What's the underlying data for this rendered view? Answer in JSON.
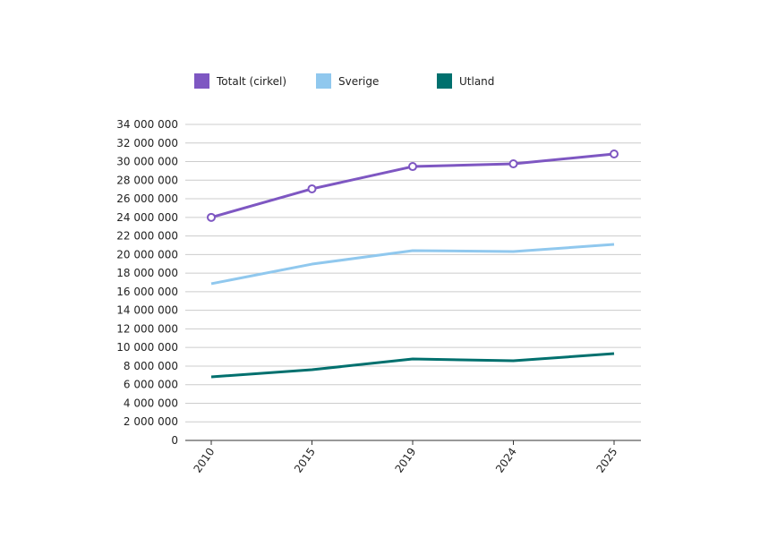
{
  "chart_data": {
    "type": "line",
    "categories": [
      "2010",
      "2015",
      "2019",
      "2024",
      "2025"
    ],
    "series": [
      {
        "name": "Totalt (cirkel)",
        "color": "#7e57c2",
        "markers": "circle",
        "values": [
          24000000,
          27070000,
          29470000,
          29760000,
          30820000
        ]
      },
      {
        "name": "Sverige",
        "color": "#90c8ee",
        "values": [
          16860000,
          18970000,
          20420000,
          20320000,
          21090000
        ]
      },
      {
        "name": "Utland",
        "color": "#00706e",
        "values": [
          6840000,
          7610000,
          8760000,
          8570000,
          9340000
        ]
      }
    ],
    "ylim": [
      0,
      34000000
    ],
    "yticks": [
      0,
      2000000,
      4000000,
      6000000,
      8000000,
      10000000,
      12000000,
      14000000,
      16000000,
      18000000,
      20000000,
      22000000,
      24000000,
      26000000,
      28000000,
      30000000,
      32000000,
      34000000
    ],
    "grid": true,
    "legend_position": "top",
    "title": "",
    "xlabel": "",
    "ylabel": ""
  }
}
